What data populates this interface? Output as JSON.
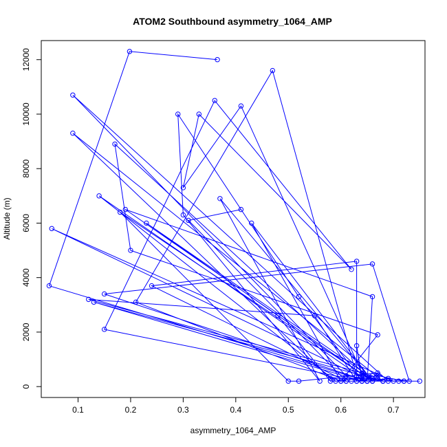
{
  "chart_data": {
    "type": "line",
    "title": "ATOM2 Southbound asymmetry_1064_AMP",
    "xlabel": "asymmetry_1064_AMP",
    "ylabel": "Altitude (m)",
    "xlim": [
      0.03,
      0.76
    ],
    "ylim": [
      -400,
      12700
    ],
    "xticks": [
      0.1,
      0.2,
      0.3,
      0.4,
      0.5,
      0.6,
      0.7
    ],
    "xtick_labels": [
      "0.1",
      "0.2",
      "0.3",
      "0.4",
      "0.5",
      "0.6",
      "0.7"
    ],
    "yticks": [
      0,
      2000,
      4000,
      6000,
      8000,
      10000,
      12000
    ],
    "ytick_labels": [
      "0",
      "2000",
      "4000",
      "6000",
      "8000",
      "10000",
      "12000"
    ],
    "series_color": "#0000ff",
    "marker": "open-circle",
    "grid": false,
    "x": [
      0.365,
      0.198,
      0.045,
      0.65,
      0.71,
      0.645,
      0.05,
      0.7,
      0.72,
      0.75,
      0.68,
      0.67,
      0.58,
      0.09,
      0.68,
      0.61,
      0.09,
      0.69,
      0.72,
      0.67,
      0.59,
      0.14,
      0.65,
      0.69,
      0.73,
      0.66,
      0.15,
      0.65,
      0.58,
      0.48,
      0.23,
      0.66,
      0.67,
      0.52,
      0.5,
      0.18,
      0.66,
      0.64,
      0.41,
      0.3,
      0.33,
      0.62,
      0.36,
      0.15,
      0.64,
      0.64,
      0.63,
      0.64,
      0.13,
      0.68,
      0.66,
      0.64,
      0.52,
      0.29,
      0.3,
      0.56,
      0.37,
      0.66,
      0.17,
      0.2,
      0.67,
      0.6,
      0.43,
      0.66,
      0.19,
      0.66,
      0.65,
      0.61,
      0.63,
      0.55,
      0.12,
      0.66,
      0.63,
      0.47,
      0.21,
      0.6,
      0.62,
      0.63,
      0.63,
      0.24,
      0.61,
      0.31,
      0.41
    ],
    "y": [
      12000,
      12300,
      3700,
      200,
      200,
      300,
      5800,
      200,
      200,
      200,
      200,
      300,
      300,
      9300,
      200,
      400,
      10700,
      200,
      200,
      400,
      200,
      7000,
      200,
      300,
      200,
      4500,
      3400,
      200,
      200,
      2600,
      6000,
      300,
      500,
      200,
      200,
      6400,
      200,
      500,
      10300,
      7300,
      10000,
      4300,
      10500,
      2100,
      200,
      300,
      1500,
      200,
      3100,
      200,
      300,
      200,
      3300,
      10000,
      6300,
      200,
      6900,
      200,
      8900,
      5000,
      1900,
      200,
      6000,
      200,
      6500,
      3300,
      200,
      200,
      200,
      2600,
      3200,
      400,
      400,
      11600,
      3100,
      200,
      200,
      200,
      4600,
      3700,
      200,
      6100,
      6500
    ]
  }
}
